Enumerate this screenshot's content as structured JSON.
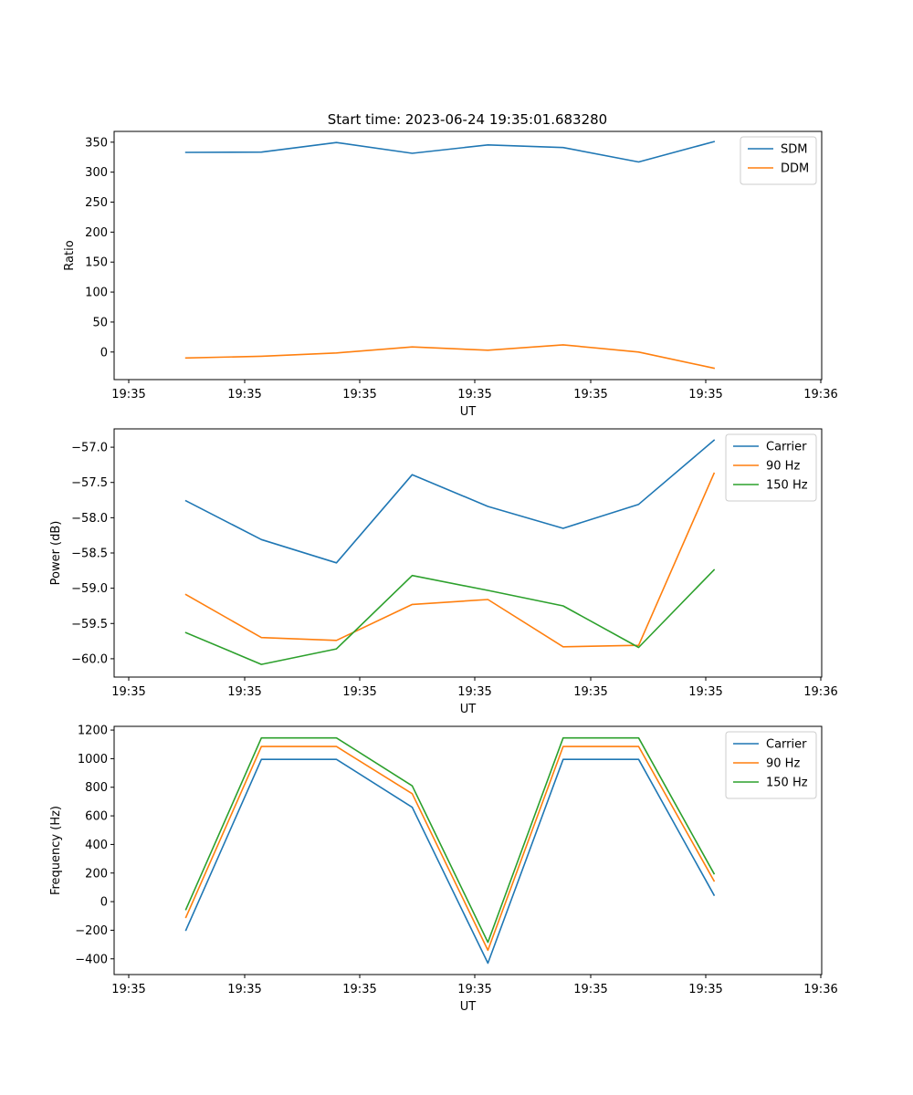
{
  "figure_title": "Start time: 2023-06-24 19:35:01.683280",
  "colors": {
    "blue": "#1f77b4",
    "orange": "#ff7f0e",
    "green": "#2ca02c"
  },
  "chart_data": [
    {
      "type": "line",
      "xlabel": "UT",
      "ylabel": "Ratio",
      "x_tick_labels": [
        "19:35",
        "19:35",
        "19:35",
        "19:35",
        "19:35",
        "19:35",
        "19:36"
      ],
      "y_ticks": [
        0,
        50,
        100,
        150,
        200,
        250,
        300,
        350
      ],
      "y_tick_labels": [
        "0",
        "50",
        "100",
        "150",
        "200",
        "250",
        "300",
        "350"
      ],
      "ylim": [
        -46,
        368
      ],
      "legend_position": "upper right",
      "series": [
        {
          "name": "SDM",
          "color": "#1f77b4",
          "values": [
            333,
            333.5,
            349.5,
            331.5,
            345.5,
            341,
            317,
            351
          ]
        },
        {
          "name": "DDM",
          "color": "#ff7f0e",
          "values": [
            -10,
            -7,
            -1.5,
            8.5,
            3,
            12,
            0,
            -27
          ]
        }
      ]
    },
    {
      "type": "line",
      "xlabel": "UT",
      "ylabel": "Power (dB)",
      "x_tick_labels": [
        "19:35",
        "19:35",
        "19:35",
        "19:35",
        "19:35",
        "19:35",
        "19:36"
      ],
      "y_ticks": [
        -60.0,
        -59.5,
        -59.0,
        -58.5,
        -58.0,
        -57.5,
        -57.0
      ],
      "y_tick_labels": [
        "−60.0",
        "−59.5",
        "−59.0",
        "−58.5",
        "−58.0",
        "−57.5",
        "−57.0"
      ],
      "ylim": [
        -60.26,
        -56.74
      ],
      "legend_position": "upper right",
      "series": [
        {
          "name": "Carrier",
          "color": "#1f77b4",
          "values": [
            -57.76,
            -58.31,
            -58.64,
            -57.39,
            -57.84,
            -58.15,
            -57.81,
            -56.9
          ]
        },
        {
          "name": "90 Hz",
          "color": "#ff7f0e",
          "values": [
            -59.09,
            -59.7,
            -59.74,
            -59.23,
            -59.16,
            -59.83,
            -59.81,
            -57.37
          ]
        },
        {
          "name": "150 Hz",
          "color": "#2ca02c",
          "values": [
            -59.63,
            -60.08,
            -59.86,
            -58.82,
            -59.03,
            -59.25,
            -59.84,
            -58.74
          ]
        }
      ]
    },
    {
      "type": "line",
      "xlabel": "UT",
      "ylabel": "Frequency (Hz)",
      "x_tick_labels": [
        "19:35",
        "19:35",
        "19:35",
        "19:35",
        "19:35",
        "19:35",
        "19:36"
      ],
      "y_ticks": [
        -400,
        -200,
        0,
        200,
        400,
        600,
        800,
        1000,
        1200
      ],
      "y_tick_labels": [
        "−400",
        "−200",
        "0",
        "200",
        "400",
        "600",
        "800",
        "1000",
        "1200"
      ],
      "ylim": [
        -510,
        1226
      ],
      "legend_position": "upper right",
      "series": [
        {
          "name": "Carrier",
          "color": "#1f77b4",
          "values": [
            -200,
            995,
            995,
            660,
            -430,
            995,
            995,
            45
          ]
        },
        {
          "name": "90 Hz",
          "color": "#ff7f0e",
          "values": [
            -110,
            1085,
            1085,
            755,
            -340,
            1085,
            1085,
            145
          ]
        },
        {
          "name": "150 Hz",
          "color": "#2ca02c",
          "values": [
            -55,
            1145,
            1145,
            810,
            -285,
            1145,
            1145,
            195
          ]
        }
      ]
    }
  ]
}
